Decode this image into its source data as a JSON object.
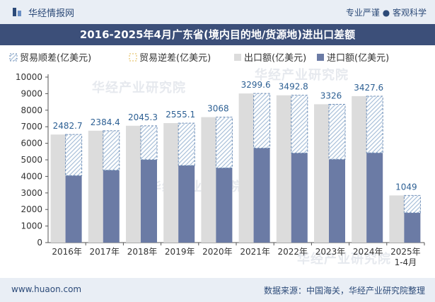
{
  "header": {
    "brand": "华经情报网",
    "tagline": "专业严谨 ● 客观科学"
  },
  "watermarks": [
    "华经产业研究院",
    "华经产业研究院",
    "华经产业研究院",
    "华经产业研究院"
  ],
  "footer": {
    "site": "www.huaon.com",
    "source": "数据来源：中国海关，华经产业研究院整理"
  },
  "colors": {
    "export": "#dcdcdc",
    "import": "#6b7ba5",
    "surplus_hatch": "#a9c0d9",
    "surplus_border": "#6d8db6",
    "title_bg": "#3c4f79"
  },
  "chart_data": {
    "type": "bar",
    "title": "2016-2025年4月广东省(境内目的地/货源地)进出口差额",
    "categories": [
      "2016年",
      "2017年",
      "2018年",
      "2019年",
      "2020年",
      "2021年",
      "2022年",
      "2023年",
      "2024年",
      "2025年\n1-4月"
    ],
    "series": [
      {
        "name": "贸易顺差(亿美元)",
        "values": [
          2482.7,
          2384.4,
          2045.3,
          2555.1,
          3068,
          3299.6,
          3492.8,
          3326,
          3427.6,
          1049
        ]
      },
      {
        "name": "贸易逆差(亿美元)",
        "values": [
          0,
          0,
          0,
          0,
          0,
          0,
          0,
          0,
          0,
          0
        ]
      },
      {
        "name": "出口额(亿美元)",
        "values": [
          6530,
          6760,
          7060,
          7220,
          7580,
          9010,
          8900,
          8360,
          8850,
          2850
        ]
      },
      {
        "name": "进口额(亿美元)",
        "values": [
          4050,
          4375,
          5010,
          4660,
          4510,
          5710,
          5410,
          5030,
          5420,
          1800
        ]
      }
    ],
    "labels": [
      "2482.7",
      "2384.4",
      "2045.3",
      "2555.1",
      "3068",
      "3299.6",
      "3492.8",
      "3326",
      "3427.6",
      "1049"
    ],
    "yticks": [
      "0",
      "1000",
      "2000",
      "3000",
      "4000",
      "5000",
      "6000",
      "7000",
      "8000",
      "9000",
      "10000"
    ],
    "ylim": [
      0,
      10000
    ],
    "legend_position": "top-left",
    "grid": false
  }
}
